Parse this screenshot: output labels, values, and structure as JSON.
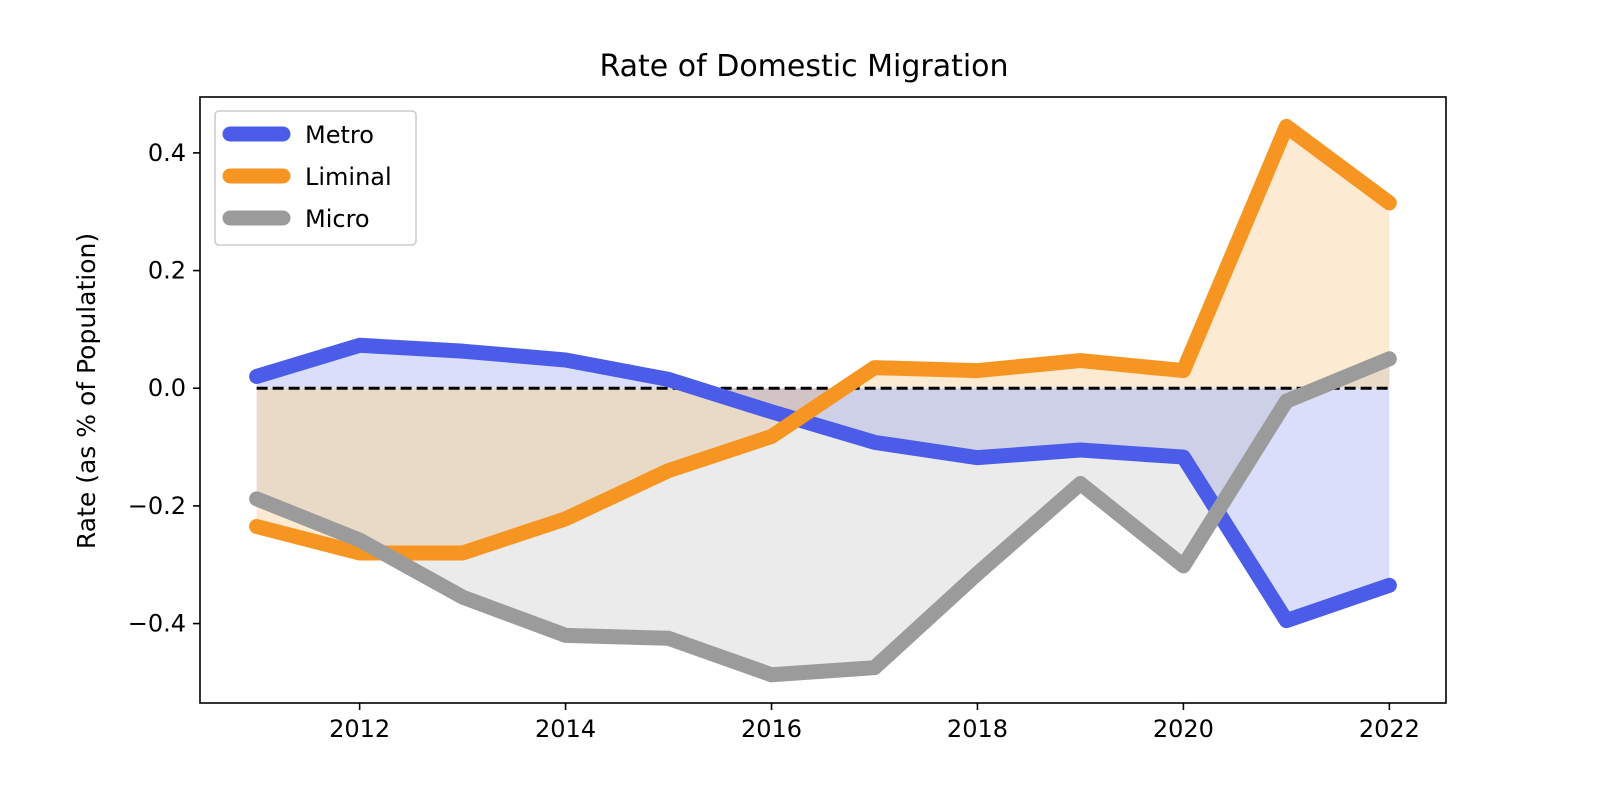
{
  "chart_data": {
    "type": "line",
    "title": "Rate of Domestic Migration",
    "xlabel": "",
    "ylabel": "Rate (as % of Population)",
    "x": [
      2011,
      2012,
      2013,
      2014,
      2015,
      2016,
      2017,
      2018,
      2019,
      2020,
      2021,
      2022
    ],
    "xlim": [
      2010.45,
      2022.55
    ],
    "ylim": [
      -0.535,
      0.495
    ],
    "xticks": [
      2012,
      2014,
      2016,
      2018,
      2020,
      2022
    ],
    "yticks": [
      -0.4,
      -0.2,
      0.0,
      0.2,
      0.4
    ],
    "ytick_labels": [
      "−0.4",
      "−0.2",
      "0.0",
      "0.2",
      "0.4"
    ],
    "reference_line": {
      "y": 0,
      "style": "dashed",
      "color": "#000000"
    },
    "fill_to_zero": true,
    "grid": false,
    "legend_position": "top-left",
    "series": [
      {
        "name": "Metro",
        "color": "#4a5ce8",
        "fill": "#dadcf8",
        "values": [
          0.02,
          0.073,
          0.063,
          0.048,
          0.015,
          -0.04,
          -0.092,
          -0.118,
          -0.105,
          -0.117,
          -0.395,
          -0.335
        ]
      },
      {
        "name": "Liminal",
        "color": "#f79522",
        "fill": "#fde8d2",
        "values": [
          -0.235,
          -0.28,
          -0.28,
          -0.222,
          -0.14,
          -0.082,
          0.035,
          0.03,
          0.047,
          0.03,
          0.445,
          0.315
        ]
      },
      {
        "name": "Micro",
        "color": "#9b9b9b",
        "fill": "#ebebeb",
        "values": [
          -0.188,
          -0.258,
          -0.355,
          -0.42,
          -0.425,
          -0.487,
          -0.475,
          -0.315,
          -0.162,
          -0.302,
          -0.022,
          0.05
        ]
      }
    ]
  }
}
